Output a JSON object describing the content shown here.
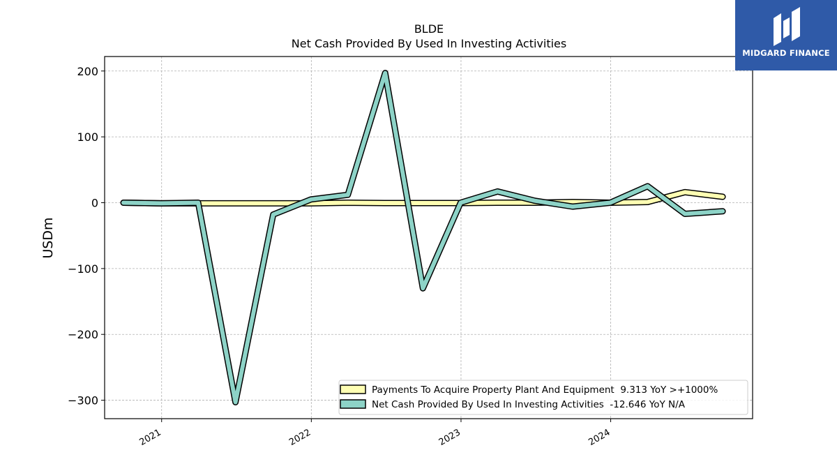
{
  "brand": {
    "name": "MIDGARD FINANCE",
    "color": "#2f5aa8"
  },
  "chart_data": {
    "type": "line",
    "title": "BLDE",
    "subtitle": "Net Cash Provided By Used In Investing Activities",
    "xlabel": "",
    "ylabel": "USDm",
    "ylim": [
      -328,
      222
    ],
    "xlim": [
      "2020-08-15",
      "2024-12-12"
    ],
    "y_ticks": [
      200,
      100,
      0,
      -100,
      -200,
      -300
    ],
    "y_tick_labels": [
      "200",
      "100",
      "0",
      "−100",
      "−200",
      "−300"
    ],
    "x_ticks": [
      "2021-01-01",
      "2022-01-01",
      "2023-01-01",
      "2024-01-01"
    ],
    "x_tick_labels": [
      "2021",
      "2022",
      "2023",
      "2024"
    ],
    "grid": true,
    "legend_position": "lower-right",
    "x": [
      "2020-09-30",
      "2020-12-31",
      "2021-03-31",
      "2021-06-30",
      "2021-09-30",
      "2021-12-31",
      "2022-03-31",
      "2022-06-30",
      "2022-09-30",
      "2022-12-31",
      "2023-03-31",
      "2023-06-30",
      "2023-09-30",
      "2023-12-31",
      "2024-03-31",
      "2024-06-30",
      "2024-09-30"
    ],
    "series": [
      {
        "name": "Payments To Acquire Property Plant And Equipment  9.313 YoY >+1000%",
        "color": "#ffffb3",
        "values": [
          0,
          -1,
          -1,
          -1,
          -1,
          -1,
          0,
          -0.5,
          -0.5,
          -0.5,
          0,
          0,
          1,
          0,
          1,
          16,
          9
        ]
      },
      {
        "name": "Net Cash Provided By Used In Investing Activities  -12.646 YoY N/A",
        "color": "#8dd3c7",
        "values": [
          0,
          -1,
          0,
          -303,
          -18,
          5,
          12,
          197,
          -130,
          0,
          17,
          3,
          -6,
          0,
          25,
          -17,
          -13
        ]
      }
    ]
  }
}
